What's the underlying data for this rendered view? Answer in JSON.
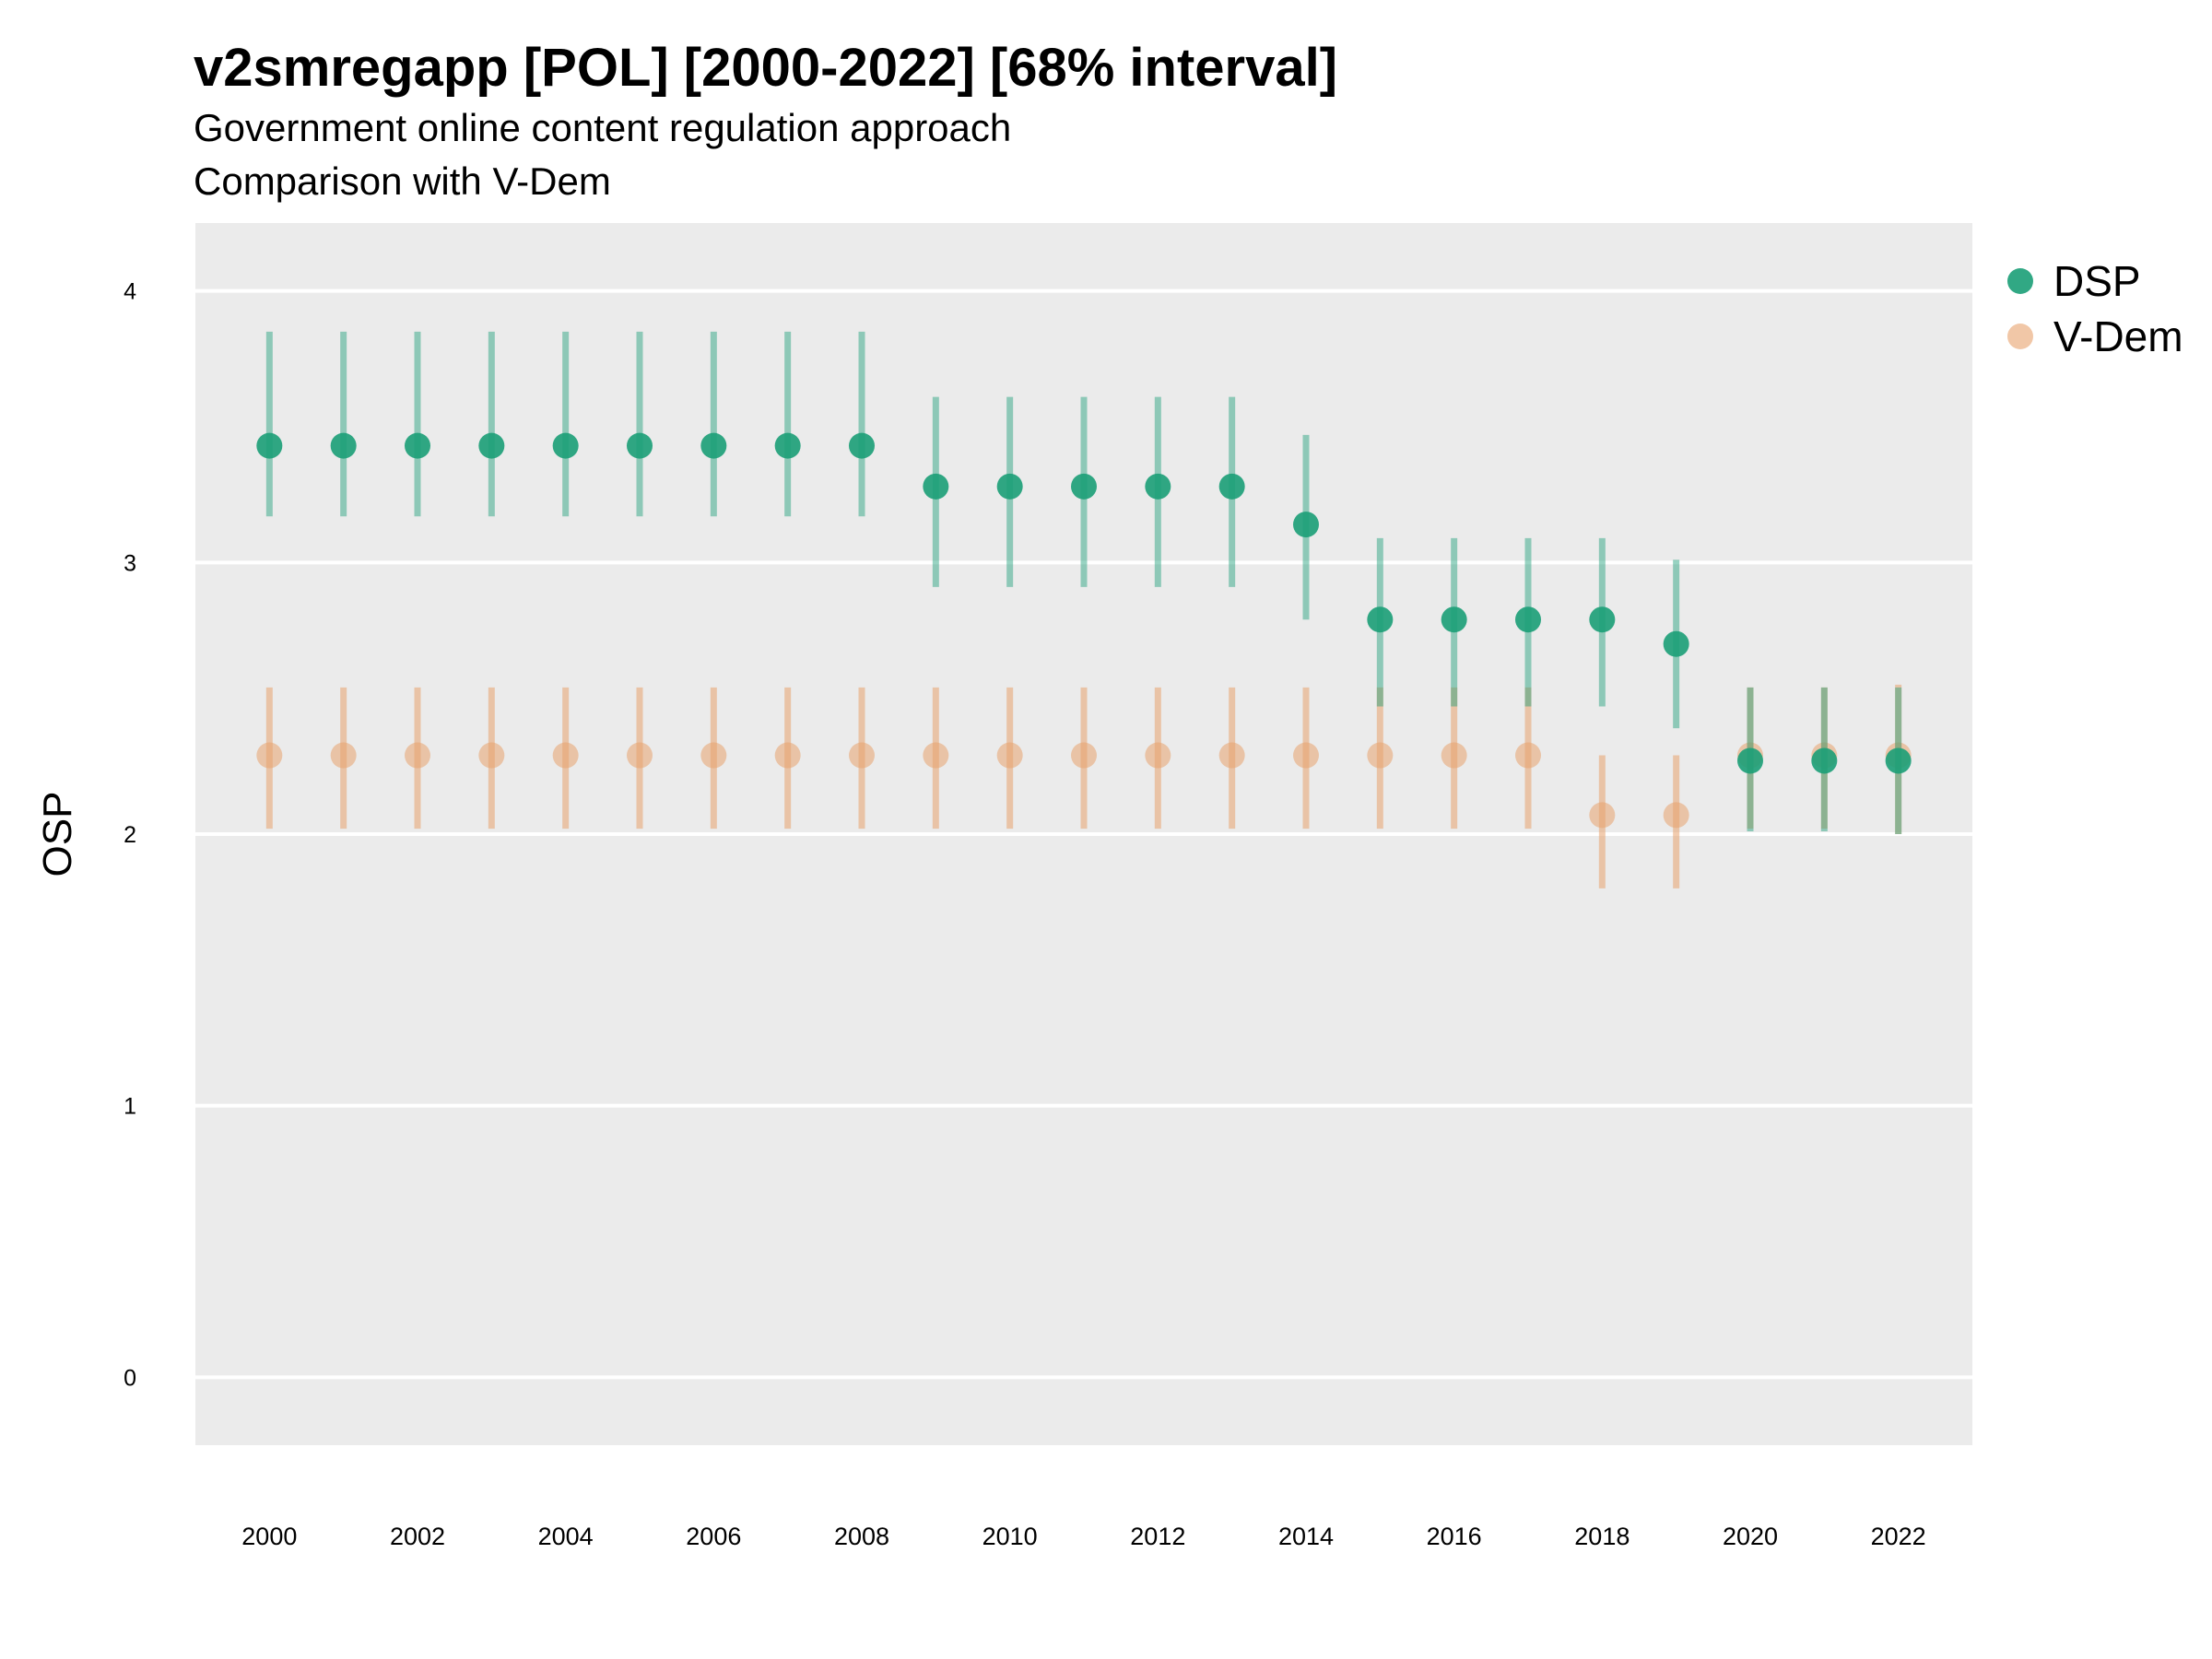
{
  "title": "v2smregapp [POL] [2000-2022] [68% interval]",
  "subtitle": "Government online content regulation approach",
  "subtitle2": "Comparison with V-Dem",
  "colors": {
    "panel": "#ebebeb",
    "grid": "#ffffff",
    "dsp": "#1b9e77",
    "vdem": "#e7a26d"
  },
  "legend": [
    {
      "name": "DSP",
      "color": "#1b9e77",
      "opacity": 0.9
    },
    {
      "name": "V-Dem",
      "color": "#e7a26d",
      "opacity": 0.6
    }
  ],
  "chart_data": {
    "type": "scatter",
    "ylabel": "OSP",
    "xlabel": "",
    "ylim": [
      -0.25,
      4.25
    ],
    "xlim": [
      1999.0,
      2023.0
    ],
    "yticks": [
      0,
      1,
      2,
      3,
      4
    ],
    "xticks": [
      2000,
      2002,
      2004,
      2006,
      2008,
      2010,
      2012,
      2014,
      2016,
      2018,
      2020,
      2022
    ],
    "grid": true,
    "legend_position": "right",
    "x": [
      2000,
      2001,
      2002,
      2003,
      2004,
      2005,
      2006,
      2007,
      2008,
      2009,
      2010,
      2011,
      2012,
      2013,
      2014,
      2015,
      2016,
      2017,
      2018,
      2019,
      2020,
      2021,
      2022
    ],
    "series": [
      {
        "name": "V-Dem",
        "color": "#e7a26d",
        "values": [
          2.29,
          2.29,
          2.29,
          2.29,
          2.29,
          2.29,
          2.29,
          2.29,
          2.29,
          2.29,
          2.29,
          2.29,
          2.29,
          2.29,
          2.29,
          2.29,
          2.29,
          2.29,
          2.07,
          2.07,
          2.29,
          2.29,
          2.29
        ],
        "lower": [
          2.02,
          2.02,
          2.02,
          2.02,
          2.02,
          2.02,
          2.02,
          2.02,
          2.02,
          2.02,
          2.02,
          2.02,
          2.02,
          2.02,
          2.02,
          2.02,
          2.02,
          2.02,
          1.8,
          1.8,
          2.02,
          2.02,
          2.0
        ],
        "upper": [
          2.54,
          2.54,
          2.54,
          2.54,
          2.54,
          2.54,
          2.54,
          2.54,
          2.54,
          2.54,
          2.54,
          2.54,
          2.54,
          2.54,
          2.54,
          2.54,
          2.54,
          2.54,
          2.29,
          2.29,
          2.54,
          2.54,
          2.55
        ]
      },
      {
        "name": "DSP",
        "color": "#1b9e77",
        "values": [
          3.43,
          3.43,
          3.43,
          3.43,
          3.43,
          3.43,
          3.43,
          3.43,
          3.43,
          3.28,
          3.28,
          3.28,
          3.28,
          3.28,
          3.14,
          2.79,
          2.79,
          2.79,
          2.79,
          2.7,
          2.27,
          2.27,
          2.27
        ],
        "lower": [
          3.17,
          3.17,
          3.17,
          3.17,
          3.17,
          3.17,
          3.17,
          3.17,
          3.17,
          2.91,
          2.91,
          2.91,
          2.91,
          2.91,
          2.79,
          2.47,
          2.47,
          2.47,
          2.47,
          2.39,
          2.01,
          2.01,
          2.0
        ],
        "upper": [
          3.85,
          3.85,
          3.85,
          3.85,
          3.85,
          3.85,
          3.85,
          3.85,
          3.85,
          3.61,
          3.61,
          3.61,
          3.61,
          3.61,
          3.47,
          3.09,
          3.09,
          3.09,
          3.09,
          3.01,
          2.54,
          2.54,
          2.54
        ]
      }
    ]
  }
}
